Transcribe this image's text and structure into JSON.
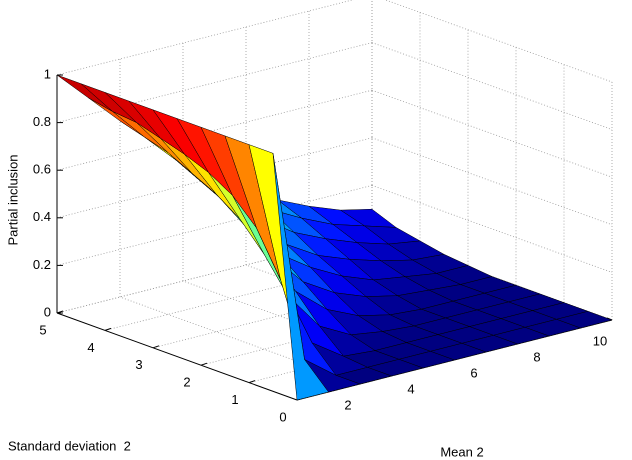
{
  "chart_data": {
    "type": "surface",
    "zlabel": "Partial inclusion",
    "xlabel": "Mean 2",
    "ylabel": "Standard deviation  2",
    "x": [
      0,
      1,
      2,
      3,
      4,
      5,
      6,
      7,
      8,
      9,
      10
    ],
    "y": [
      0,
      0.5,
      1,
      1.5,
      2,
      2.5,
      3,
      3.5,
      4,
      4.5,
      5
    ],
    "z": [
      [
        0,
        0,
        0,
        0,
        0,
        0,
        0,
        0,
        0,
        0,
        0
      ],
      [
        1,
        0.1,
        0,
        0,
        0,
        0,
        0,
        0,
        0,
        0,
        0
      ],
      [
        1,
        0.4,
        0.1,
        0.01,
        0,
        0,
        0,
        0,
        0,
        0,
        0
      ],
      [
        1,
        0.58,
        0.26,
        0.1,
        0.03,
        0.01,
        0,
        0,
        0,
        0,
        0
      ],
      [
        1,
        0.68,
        0.4,
        0.21,
        0.1,
        0.04,
        0.01,
        0,
        0,
        0,
        0
      ],
      [
        1,
        0.74,
        0.51,
        0.32,
        0.18,
        0.1,
        0.05,
        0.02,
        0.01,
        0,
        0
      ],
      [
        1,
        0.78,
        0.58,
        0.4,
        0.26,
        0.17,
        0.1,
        0.05,
        0.03,
        0.01,
        0.01
      ],
      [
        1,
        0.81,
        0.63,
        0.48,
        0.34,
        0.23,
        0.15,
        0.1,
        0.06,
        0.03,
        0.02
      ],
      [
        1,
        0.84,
        0.68,
        0.53,
        0.4,
        0.3,
        0.21,
        0.15,
        0.1,
        0.06,
        0.04
      ],
      [
        1,
        0.85,
        0.71,
        0.58,
        0.46,
        0.35,
        0.27,
        0.2,
        0.14,
        0.1,
        0.06
      ],
      [
        1,
        0.87,
        0.74,
        0.62,
        0.51,
        0.41,
        0.32,
        0.24,
        0.18,
        0.13,
        0.1
      ]
    ],
    "xlim": [
      0,
      10
    ],
    "ylim": [
      0,
      5
    ],
    "zlim": [
      0,
      1
    ],
    "xticks": [
      2,
      4,
      6,
      8,
      10
    ],
    "yticks": [
      0,
      1,
      2,
      3,
      4,
      5
    ],
    "zticks": [
      0,
      0.2,
      0.4,
      0.6,
      0.8,
      1
    ],
    "grid": true,
    "colormap": "jet"
  }
}
